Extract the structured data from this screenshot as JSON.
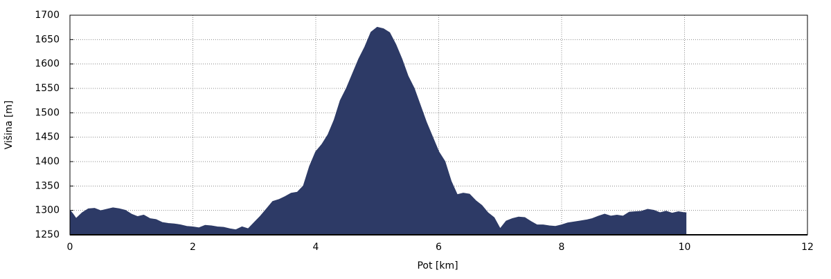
{
  "chart_data": {
    "type": "area",
    "xlabel": "Pot [km]",
    "ylabel": "Višina [m]",
    "color": "#2d3a66",
    "grid": true,
    "xlim": [
      0,
      12
    ],
    "ylim": [
      1250,
      1700
    ],
    "xticks": [
      0,
      2,
      4,
      6,
      8,
      10,
      12
    ],
    "yticks": [
      1250,
      1300,
      1350,
      1400,
      1450,
      1500,
      1550,
      1600,
      1650,
      1700
    ],
    "x": [
      0,
      0.05,
      0.1,
      0.2,
      0.3,
      0.4,
      0.5,
      0.6,
      0.7,
      0.8,
      0.9,
      1.0,
      1.1,
      1.2,
      1.3,
      1.4,
      1.5,
      1.6,
      1.7,
      1.8,
      1.9,
      2.0,
      2.1,
      2.2,
      2.3,
      2.4,
      2.5,
      2.6,
      2.7,
      2.8,
      2.9,
      3.0,
      3.1,
      3.2,
      3.3,
      3.4,
      3.5,
      3.6,
      3.7,
      3.8,
      3.9,
      4.0,
      4.1,
      4.2,
      4.3,
      4.4,
      4.5,
      4.6,
      4.7,
      4.8,
      4.9,
      5.0,
      5.1,
      5.2,
      5.3,
      5.4,
      5.5,
      5.6,
      5.7,
      5.8,
      5.9,
      6.0,
      6.1,
      6.2,
      6.3,
      6.4,
      6.5,
      6.6,
      6.7,
      6.8,
      6.9,
      7.0,
      7.1,
      7.2,
      7.3,
      7.4,
      7.5,
      7.6,
      7.7,
      7.8,
      7.9,
      8.0,
      8.1,
      8.2,
      8.3,
      8.4,
      8.5,
      8.6,
      8.7,
      8.8,
      8.9,
      9.0,
      9.1,
      9.2,
      9.3,
      9.4,
      9.5,
      9.6,
      9.7,
      9.8,
      9.9,
      10.0,
      10.03
    ],
    "values": [
      1300,
      1292,
      1283,
      1295,
      1303,
      1304,
      1299,
      1302,
      1305,
      1303,
      1300,
      1292,
      1287,
      1290,
      1283,
      1281,
      1275,
      1273,
      1272,
      1270,
      1267,
      1266,
      1264,
      1269,
      1268,
      1266,
      1265,
      1262,
      1260,
      1266,
      1262,
      1275,
      1288,
      1303,
      1318,
      1322,
      1328,
      1335,
      1337,
      1350,
      1390,
      1420,
      1435,
      1455,
      1485,
      1525,
      1550,
      1580,
      1610,
      1635,
      1665,
      1675,
      1672,
      1664,
      1640,
      1610,
      1575,
      1550,
      1515,
      1480,
      1450,
      1420,
      1400,
      1360,
      1332,
      1335,
      1333,
      1320,
      1310,
      1295,
      1285,
      1262,
      1278,
      1283,
      1286,
      1285,
      1277,
      1270,
      1270,
      1268,
      1267,
      1270,
      1274,
      1276,
      1278,
      1280,
      1283,
      1288,
      1292,
      1288,
      1290,
      1288,
      1296,
      1297,
      1298,
      1302,
      1300,
      1295,
      1298,
      1294,
      1297,
      1295,
      1295
    ]
  }
}
